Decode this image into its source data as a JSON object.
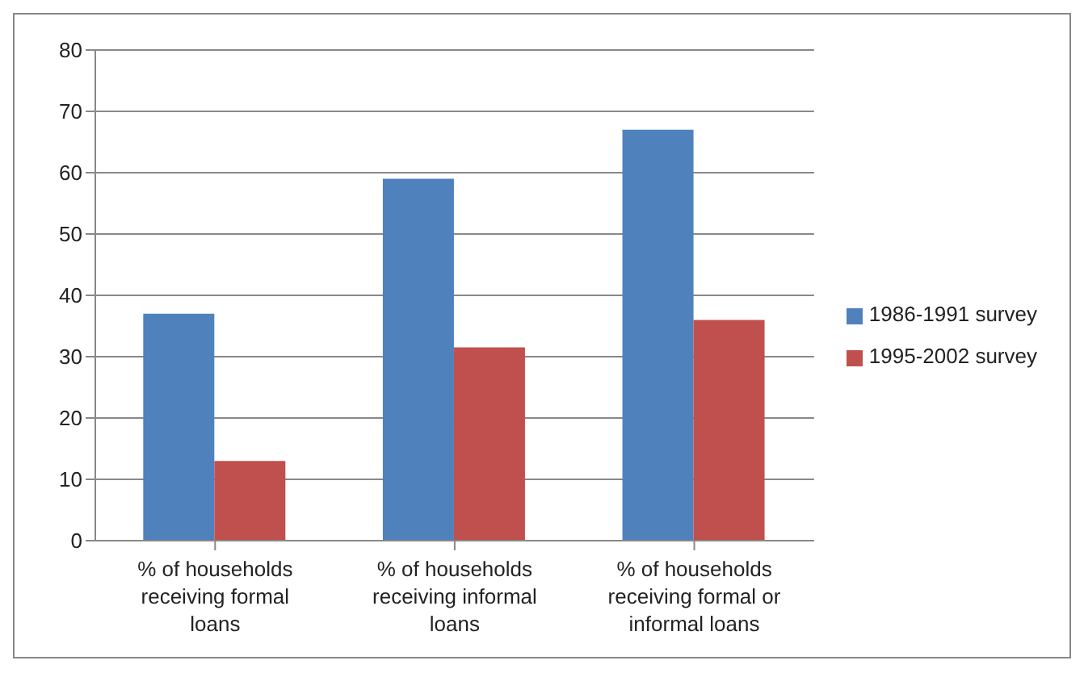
{
  "chart_data": {
    "type": "bar",
    "categories": [
      "% of households receiving formal loans",
      "% of households receiving informal loans",
      "% of households receiving formal or informal loans"
    ],
    "series": [
      {
        "name": "1986-1991 survey",
        "color": "#4f81bd",
        "values": [
          37,
          59,
          67
        ]
      },
      {
        "name": "1995-2002 survey",
        "color": "#c0504d",
        "values": [
          13,
          31.5,
          36
        ]
      }
    ],
    "ylim": [
      0,
      80
    ],
    "yticks": [
      0,
      10,
      20,
      30,
      40,
      50,
      60,
      70,
      80
    ],
    "grid": "y",
    "legend": "right"
  }
}
